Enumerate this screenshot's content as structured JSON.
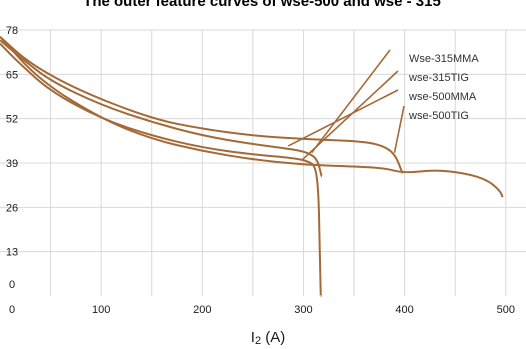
{
  "chart_data": {
    "type": "line",
    "title": "The outer feature curves of wse-500 and wse - 315",
    "xlabel_main": "I",
    "xlabel_sub": "2",
    "xlabel_unit": " (A)",
    "ylabel": "",
    "xlim": [
      0,
      520
    ],
    "ylim": [
      0,
      78
    ],
    "x_ticks": [
      0,
      100,
      200,
      300,
      400,
      500
    ],
    "y_ticks": [
      0,
      13,
      26,
      39,
      52,
      65,
      78
    ],
    "grid": true,
    "legend_position": "top-right",
    "colors": {
      "curve": "#a36a38",
      "grid": "#d8d8d8",
      "text": "#1a1a1a"
    },
    "series": [
      {
        "name": "Wse-315MMA",
        "points": [
          [
            0,
            74
          ],
          [
            20,
            68
          ],
          [
            50,
            60
          ],
          [
            100,
            52
          ],
          [
            150,
            47
          ],
          [
            200,
            43.5
          ],
          [
            250,
            41.5
          ],
          [
            290,
            40.5
          ],
          [
            305,
            39.5
          ],
          [
            312,
            38
          ],
          [
            315,
            30
          ],
          [
            316,
            15
          ],
          [
            317,
            0
          ]
        ],
        "label_anchor": [
          308,
          42
        ]
      },
      {
        "name": "wse-315TIG",
        "points": [
          [
            0,
            75
          ],
          [
            20,
            70
          ],
          [
            50,
            63
          ],
          [
            100,
            56
          ],
          [
            150,
            51
          ],
          [
            200,
            47
          ],
          [
            250,
            44.5
          ],
          [
            290,
            43
          ],
          [
            305,
            42
          ],
          [
            314,
            40
          ],
          [
            318,
            35
          ]
        ],
        "label_anchor": [
          299,
          40
        ]
      },
      {
        "name": "wse-500MMA",
        "points": [
          [
            0,
            76
          ],
          [
            30,
            68
          ],
          [
            80,
            60
          ],
          [
            150,
            52
          ],
          [
            200,
            49
          ],
          [
            250,
            47
          ],
          [
            300,
            46
          ],
          [
            350,
            45.5
          ],
          [
            375,
            44.5
          ],
          [
            390,
            42
          ],
          [
            398,
            36
          ]
        ],
        "label_anchor": [
          285,
          44
        ]
      },
      {
        "name": "wse-500TIG",
        "points": [
          [
            0,
            76
          ],
          [
            40,
            63
          ],
          [
            100,
            52
          ],
          [
            150,
            46
          ],
          [
            200,
            42.5
          ],
          [
            250,
            40
          ],
          [
            300,
            38.5
          ],
          [
            350,
            38
          ],
          [
            380,
            37.5
          ],
          [
            400,
            36
          ],
          [
            430,
            37
          ],
          [
            460,
            36
          ],
          [
            482,
            34
          ],
          [
            494,
            31
          ],
          [
            497,
            29
          ]
        ],
        "label_anchor": [
          390,
          42
        ]
      }
    ]
  }
}
